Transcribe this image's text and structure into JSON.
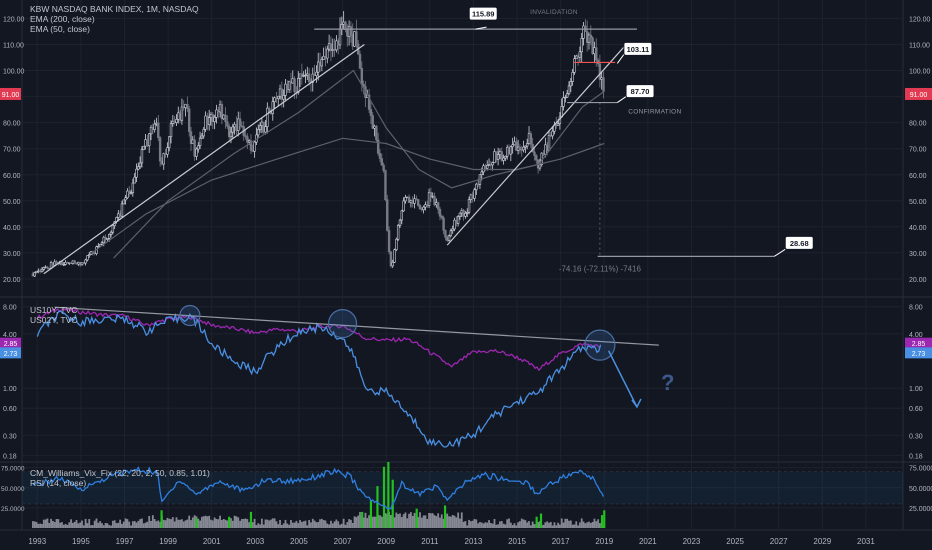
{
  "chart_data": [
    {
      "type": "candlestick",
      "title": "KBW NASDAQ BANK INDEX, 1M, NASDAQ",
      "indicators": [
        "EMA (200, close)",
        "EMA (50, close)"
      ],
      "y_ticks": [
        20.0,
        30.0,
        40.0,
        50.0,
        60.0,
        70.0,
        80.0,
        90.0,
        100.0,
        110.0,
        120.0
      ],
      "y_tick_labels": [
        "20.00",
        "30.00",
        "40.00",
        "50.00",
        "60.00",
        "70.00",
        "80.00",
        "90.00",
        "100.00",
        "110.00",
        "120.00"
      ],
      "ylim": [
        15,
        124
      ],
      "last_price_label": "91.00",
      "last_price": 91.0,
      "price_path": [
        [
          1992.8,
          22
        ],
        [
          1993.5,
          25
        ],
        [
          1994.5,
          27
        ],
        [
          1995.0,
          26
        ],
        [
          1995.8,
          32
        ],
        [
          1996.5,
          40
        ],
        [
          1997.3,
          55
        ],
        [
          1998.0,
          72
        ],
        [
          1998.4,
          82
        ],
        [
          1998.7,
          62
        ],
        [
          1999.2,
          80
        ],
        [
          1999.8,
          86
        ],
        [
          2000.2,
          68
        ],
        [
          2000.7,
          80
        ],
        [
          2001.3,
          86
        ],
        [
          2001.8,
          74
        ],
        [
          2002.3,
          80
        ],
        [
          2002.8,
          70
        ],
        [
          2003.2,
          76
        ],
        [
          2003.8,
          87
        ],
        [
          2004.5,
          94
        ],
        [
          2005.2,
          96
        ],
        [
          2005.8,
          100
        ],
        [
          2006.5,
          108
        ],
        [
          2006.9,
          113
        ],
        [
          2007.3,
          118
        ],
        [
          2007.6,
          110
        ],
        [
          2007.9,
          98
        ],
        [
          2008.2,
          85
        ],
        [
          2008.6,
          72
        ],
        [
          2008.9,
          60
        ],
        [
          2009.1,
          32
        ],
        [
          2009.25,
          23
        ],
        [
          2009.6,
          42
        ],
        [
          2009.9,
          52
        ],
        [
          2010.3,
          50
        ],
        [
          2010.6,
          45
        ],
        [
          2011.0,
          52
        ],
        [
          2011.4,
          48
        ],
        [
          2011.75,
          35
        ],
        [
          2012.2,
          42
        ],
        [
          2012.7,
          47
        ],
        [
          2013.2,
          58
        ],
        [
          2013.7,
          65
        ],
        [
          2014.3,
          68
        ],
        [
          2014.8,
          72
        ],
        [
          2015.3,
          70
        ],
        [
          2015.6,
          76
        ],
        [
          2015.9,
          64
        ],
        [
          2016.3,
          70
        ],
        [
          2016.8,
          80
        ],
        [
          2017.2,
          92
        ],
        [
          2017.6,
          100
        ],
        [
          2018.0,
          114
        ],
        [
          2018.3,
          110
        ],
        [
          2018.6,
          105
        ],
        [
          2018.9,
          96
        ],
        [
          2019.0,
          91
        ]
      ],
      "ema200": [
        [
          1995.5,
          30
        ],
        [
          1998,
          45
        ],
        [
          2001,
          58
        ],
        [
          2004,
          66
        ],
        [
          2007,
          74
        ],
        [
          2009,
          72
        ],
        [
          2011,
          66
        ],
        [
          2013,
          62
        ],
        [
          2015,
          62
        ],
        [
          2017,
          66
        ],
        [
          2019,
          72
        ]
      ],
      "ema50": [
        [
          1996.5,
          28
        ],
        [
          1999,
          50
        ],
        [
          2002,
          68
        ],
        [
          2005,
          84
        ],
        [
          2007.5,
          100
        ],
        [
          2009,
          78
        ],
        [
          2010.5,
          62
        ],
        [
          2012,
          55
        ],
        [
          2014,
          60
        ],
        [
          2016,
          64
        ],
        [
          2018,
          86
        ],
        [
          2019,
          92
        ]
      ],
      "trendlines": [
        {
          "from": [
            1993.3,
            22
          ],
          "to": [
            2008.0,
            110
          ]
        },
        {
          "from": [
            2011.8,
            33
          ],
          "to": [
            2019.9,
            109
          ]
        }
      ],
      "levels": [
        {
          "value": 115.89,
          "label": "115.89",
          "from": 2005.7,
          "to": 2020.5,
          "color": "#9598a1"
        },
        {
          "value": 103.11,
          "label": "103.11",
          "from": 2017.6,
          "to": 2019.5,
          "color": "#ef5350"
        },
        {
          "value": 87.7,
          "label": "87.70",
          "from": 2017.3,
          "to": 2019.6,
          "color": "#9598a1"
        },
        {
          "value": 28.68,
          "label": "28.68",
          "from": 2018.7,
          "to": 2026.8,
          "color": "#9598a1"
        }
      ],
      "annotations": {
        "invalidation": "INVALIDATION",
        "confirmation": "CONFIRMATION",
        "measure": "-74.16 (-72.11%) -7416"
      }
    },
    {
      "type": "line",
      "series": [
        {
          "name": "US10Y, TVC",
          "color": "#9c27b0",
          "last_label": "2.85",
          "values": [
            [
              1993,
              6.0
            ],
            [
              1994,
              7.6
            ],
            [
              1995,
              7.0
            ],
            [
              1996,
              6.5
            ],
            [
              1997,
              6.3
            ],
            [
              1998,
              5.0
            ],
            [
              1999,
              5.8
            ],
            [
              2000,
              6.2
            ],
            [
              2001,
              5.0
            ],
            [
              2002,
              4.6
            ],
            [
              2003,
              4.1
            ],
            [
              2004,
              4.5
            ],
            [
              2005,
              4.3
            ],
            [
              2006,
              4.8
            ],
            [
              2007,
              4.9
            ],
            [
              2008,
              3.6
            ],
            [
              2009,
              3.4
            ],
            [
              2010,
              3.5
            ],
            [
              2011,
              2.5
            ],
            [
              2012,
              1.7
            ],
            [
              2013,
              2.5
            ],
            [
              2014,
              2.6
            ],
            [
              2015,
              2.2
            ],
            [
              2016,
              1.6
            ],
            [
              2017,
              2.4
            ],
            [
              2018,
              3.1
            ],
            [
              2018.9,
              2.85
            ]
          ]
        },
        {
          "name": "US02Y, TVC",
          "color": "#4a90e2",
          "last_label": "2.73",
          "values": [
            [
              1993,
              4.0
            ],
            [
              1994,
              6.5
            ],
            [
              1995,
              5.5
            ],
            [
              1996,
              5.8
            ],
            [
              1997,
              5.9
            ],
            [
              1998,
              4.3
            ],
            [
              1999,
              5.6
            ],
            [
              2000,
              6.3
            ],
            [
              2001,
              3.0
            ],
            [
              2002,
              2.0
            ],
            [
              2003,
              1.5
            ],
            [
              2004,
              2.8
            ],
            [
              2005,
              4.2
            ],
            [
              2006,
              4.8
            ],
            [
              2007,
              3.5
            ],
            [
              2008,
              1.0
            ],
            [
              2009,
              0.9
            ],
            [
              2010,
              0.5
            ],
            [
              2011,
              0.25
            ],
            [
              2012,
              0.24
            ],
            [
              2013,
              0.3
            ],
            [
              2014,
              0.5
            ],
            [
              2015,
              0.7
            ],
            [
              2016,
              0.9
            ],
            [
              2017,
              1.6
            ],
            [
              2018,
              2.8
            ],
            [
              2018.9,
              2.73
            ]
          ]
        }
      ],
      "y_ticks": [
        0.18,
        0.3,
        0.6,
        1.0,
        4.0,
        8.0
      ],
      "y_tick_labels": [
        "0.18",
        "0.30",
        "0.60",
        "1.00",
        "4.00",
        "8.00"
      ],
      "scale": "log",
      "annotation": "?"
    },
    {
      "type": "bar",
      "indicators": [
        "CM_Williams_Vix_Fix (22, 20, 2, 50, 0.85, 1.01)",
        "RSI (14, close)"
      ],
      "y_ticks": [
        25.0,
        50.0,
        75.0
      ],
      "y_tick_labels": [
        "25.0000",
        "50.0000",
        "75.0000"
      ],
      "ylim": [
        0,
        82
      ],
      "rsi": [
        [
          1992.8,
          52
        ],
        [
          1994,
          62
        ],
        [
          1995,
          48
        ],
        [
          1996.5,
          66
        ],
        [
          1997.5,
          72
        ],
        [
          1998.5,
          70
        ],
        [
          1998.7,
          32
        ],
        [
          1999.5,
          60
        ],
        [
          2000.3,
          42
        ],
        [
          2001.3,
          58
        ],
        [
          2002.5,
          46
        ],
        [
          2003.5,
          60
        ],
        [
          2004.5,
          58
        ],
        [
          2005.5,
          62
        ],
        [
          2006.5,
          70
        ],
        [
          2007.3,
          65
        ],
        [
          2008,
          40
        ],
        [
          2008.8,
          28
        ],
        [
          2009.2,
          24
        ],
        [
          2009.7,
          55
        ],
        [
          2010.5,
          42
        ],
        [
          2011.3,
          52
        ],
        [
          2011.8,
          35
        ],
        [
          2012.7,
          58
        ],
        [
          2013.5,
          66
        ],
        [
          2014.5,
          60
        ],
        [
          2015.5,
          56
        ],
        [
          2015.9,
          42
        ],
        [
          2016.5,
          55
        ],
        [
          2017.2,
          64
        ],
        [
          2018,
          70
        ],
        [
          2018.6,
          58
        ],
        [
          2019,
          38
        ]
      ],
      "vix_fix_green": [
        [
          1998.7,
          22
        ],
        [
          2000.3,
          12
        ],
        [
          2001.8,
          14
        ],
        [
          2002.8,
          20
        ],
        [
          2007.9,
          20
        ],
        [
          2008.3,
          34
        ],
        [
          2008.6,
          52
        ],
        [
          2008.9,
          76
        ],
        [
          2009.1,
          82
        ],
        [
          2009.3,
          60
        ],
        [
          2010.4,
          24
        ],
        [
          2011.7,
          28
        ],
        [
          2015.9,
          14
        ],
        [
          2016.1,
          18
        ],
        [
          2018.9,
          16
        ],
        [
          2019,
          22
        ]
      ]
    }
  ],
  "x_axis": {
    "ticks": [
      1993,
      1995,
      1997,
      1999,
      2001,
      2003,
      2005,
      2007,
      2009,
      2011,
      2013,
      2015,
      2017,
      2019,
      2021,
      2023,
      2025,
      2027,
      2029,
      2031
    ],
    "labels": [
      "1993",
      "1995",
      "1997",
      "1999",
      "2001",
      "2003",
      "2005",
      "2007",
      "2009",
      "2011",
      "2013",
      "2015",
      "2017",
      "2019",
      "2021",
      "2023",
      "2025",
      "2027",
      "2029",
      "2031"
    ],
    "xlim": [
      1992.3,
      2032.7
    ]
  },
  "legend": {
    "main_title": "KBW NASDAQ BANK INDEX, 1M, NASDAQ",
    "main_ema200": "EMA (200, close)",
    "main_ema50": "EMA (50, close)",
    "yield_10y": "US10Y, TVC",
    "yield_2y": "US02Y, TVC",
    "vix": "CM_Williams_Vix_Fix (22, 20, 2, 50, 0.85, 1.01)",
    "rsi": "RSI (14, close)"
  },
  "colors": {
    "background": "#131722",
    "grid": "#1e222d",
    "text": "#b2b5be",
    "up": "#d1d4dc",
    "down": "#787b86",
    "ten_year": "#9c27b0",
    "two_year": "#4a90e2",
    "last_price": "#e23a52",
    "vix_green": "#22c11f",
    "vix_gray": "#868993"
  }
}
